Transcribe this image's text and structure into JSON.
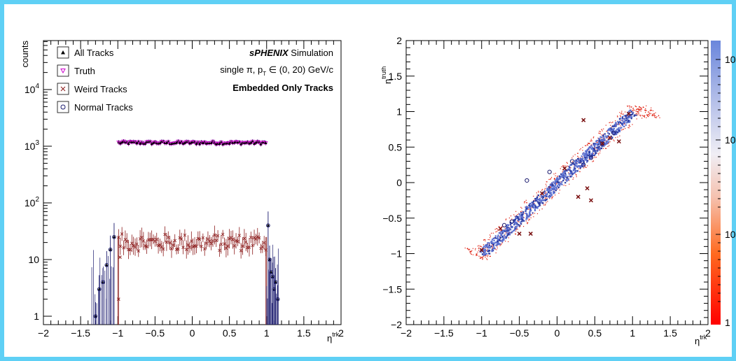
{
  "chart_data": [
    {
      "type": "scatter",
      "panel": "left",
      "ylabel": "counts",
      "xlabel_base": "η",
      "xlabel_sup": "trk",
      "log_y": true,
      "xlim": [
        -2,
        2
      ],
      "x_ticks": [
        "−2",
        "−1.5",
        "−1",
        "−0.5",
        "0",
        "0.5",
        "1",
        "1.5",
        "2"
      ],
      "y_ticks": [
        {
          "base": "1",
          "sup": ""
        },
        {
          "base": "10",
          "sup": ""
        },
        {
          "base": "10",
          "sup": "2"
        },
        {
          "base": "10",
          "sup": "3"
        },
        {
          "base": "10",
          "sup": "4"
        }
      ],
      "legend": [
        {
          "name": "All Tracks",
          "marker": "triangle",
          "color": "#000000"
        },
        {
          "name": "Truth",
          "marker": "down-triangle",
          "color": "#cc00cc"
        },
        {
          "name": "Weird Tracks",
          "marker": "cross",
          "color": "#8b1a1a"
        },
        {
          "name": "Normal Tracks",
          "marker": "circle",
          "color": "#1a1a6e"
        }
      ],
      "annotations": {
        "experiment": "sPHENIX",
        "simulation": " Simulation",
        "sample": "single π, p",
        "sample_super": "-",
        "sample_sub": "T",
        "sample_rest": " ∈ (0, 20) GeV/c",
        "selection": "Embedded Only Tracks"
      },
      "series": [
        {
          "name": "All Tracks",
          "x_range": [
            -1.0,
            1.0
          ],
          "level": 1150
        },
        {
          "name": "Truth",
          "x_range": [
            -1.0,
            1.0
          ],
          "level": 1150
        },
        {
          "name": "Weird Tracks",
          "x_range": [
            -1.0,
            1.0
          ],
          "level": 20
        },
        {
          "name": "Normal Tracks",
          "x_range": [
            -1.0,
            1.0
          ],
          "level": 1150
        }
      ],
      "tails": {
        "left": [
          {
            "x": -1.3,
            "y": 1
          },
          {
            "x": -1.25,
            "y": 3
          },
          {
            "x": -1.2,
            "y": 4
          },
          {
            "x": -1.15,
            "y": 8
          },
          {
            "x": -1.1,
            "y": 15
          },
          {
            "x": -1.05,
            "y": 25
          }
        ],
        "right": [
          {
            "x": 1.02,
            "y": 40
          },
          {
            "x": 1.04,
            "y": 10
          },
          {
            "x": 1.06,
            "y": 6
          },
          {
            "x": 1.08,
            "y": 5
          },
          {
            "x": 1.1,
            "y": 3
          },
          {
            "x": 1.12,
            "y": 4
          },
          {
            "x": 1.15,
            "y": 2
          }
        ]
      }
    },
    {
      "type": "heatmap",
      "panel": "right",
      "xlabel_base": "η",
      "xlabel_sup": "trk",
      "ylabel_base": "η",
      "ylabel_sup": "truth",
      "xlim": [
        -2,
        2
      ],
      "ylim": [
        -2,
        2
      ],
      "x_ticks": [
        "−2",
        "−1.5",
        "−1",
        "−0.5",
        "0",
        "0.5",
        "1",
        "1.5",
        "2"
      ],
      "y_ticks": [
        "−2",
        "−1.5",
        "−1",
        "−0.5",
        "0",
        "0.5",
        "1",
        "1.5",
        "2"
      ],
      "colorbar_labels": [
        "1",
        "10",
        "10",
        "10"
      ],
      "band": {
        "x_range": [
          -1.0,
          1.0
        ],
        "relation": "y = x"
      },
      "weird_points": [
        {
          "x": -0.75,
          "y": -0.65
        },
        {
          "x": 0.35,
          "y": 0.88
        },
        {
          "x": 0.4,
          "y": -0.08
        },
        {
          "x": 0.45,
          "y": -0.25
        },
        {
          "x": 0.28,
          "y": -0.2
        },
        {
          "x": -0.35,
          "y": -0.72
        },
        {
          "x": -0.5,
          "y": -0.72
        },
        {
          "x": 0.7,
          "y": 0.63
        },
        {
          "x": 0.82,
          "y": 0.58
        },
        {
          "x": -1.0,
          "y": -0.95
        },
        {
          "x": 0.95,
          "y": 0.97
        },
        {
          "x": 0.6,
          "y": 0.55
        },
        {
          "x": 0.1,
          "y": 0.2
        },
        {
          "x": -0.2,
          "y": -0.15
        }
      ],
      "outlier_circles": [
        {
          "x": -0.4,
          "y": 0.03
        },
        {
          "x": 0.45,
          "y": 0.35
        },
        {
          "x": -0.1,
          "y": 0.15
        },
        {
          "x": 0.6,
          "y": 0.55
        },
        {
          "x": -0.6,
          "y": -0.55
        },
        {
          "x": 0.2,
          "y": 0.3
        },
        {
          "x": -0.7,
          "y": -0.6
        },
        {
          "x": 0.75,
          "y": 0.7
        },
        {
          "x": 0.35,
          "y": 0.25
        }
      ]
    }
  ]
}
